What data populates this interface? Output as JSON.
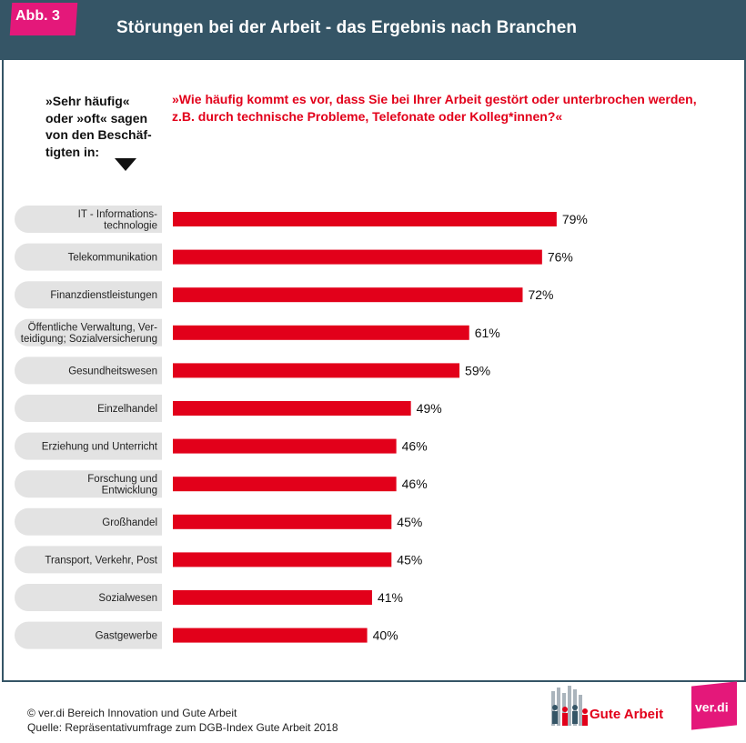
{
  "header": {
    "badge": "Abb. 3",
    "title": "Störungen bei der Arbeit - das Ergebnis nach Branchen"
  },
  "left_note": {
    "lines": [
      "»Sehr häufig«",
      "oder »oft« sagen",
      "von den Beschäf-",
      "tigten in:"
    ]
  },
  "question": "»Wie häufig kommt es vor, dass Sie bei Ihrer Arbeit gestört oder unterbrochen werden, z.B. durch technische Probleme, Telefonate oder Kolleg*innen?«",
  "chart_data": {
    "type": "bar",
    "orientation": "horizontal",
    "categories": [
      "IT - Informations-\ntechnologie",
      "Telekommunikation",
      "Finanzdienstleistungen",
      "Öffentliche Verwaltung, Ver-\nteidigung; Sozialversicherung",
      "Gesundheitswesen",
      "Einzelhandel",
      "Erziehung und Unterricht",
      "Forschung und\nEntwicklung",
      "Großhandel",
      "Transport, Verkehr, Post",
      "Sozialwesen",
      "Gastgewerbe"
    ],
    "values": [
      79,
      76,
      72,
      61,
      59,
      49,
      46,
      46,
      45,
      45,
      41,
      40
    ],
    "value_labels": [
      "79%",
      "76%",
      "72%",
      "61%",
      "59%",
      "49%",
      "46%",
      "46%",
      "45%",
      "45%",
      "41%",
      "40%"
    ],
    "unit": "%",
    "bar_color": "#e2001a",
    "label_bg_color": "#e3e3e3"
  },
  "footer": {
    "line1": "© ver.di Bereich Innovation und Gute Arbeit",
    "line2": "Quelle: Repräsentativumfrage zum DGB-Index Gute Arbeit 2018"
  },
  "logos": {
    "gute_arbeit": "Gute Arbeit",
    "verdi": "ver.di"
  },
  "colors": {
    "header_bg": "#355566",
    "accent_red": "#e2001a",
    "badge_pink": "#e4187a"
  }
}
